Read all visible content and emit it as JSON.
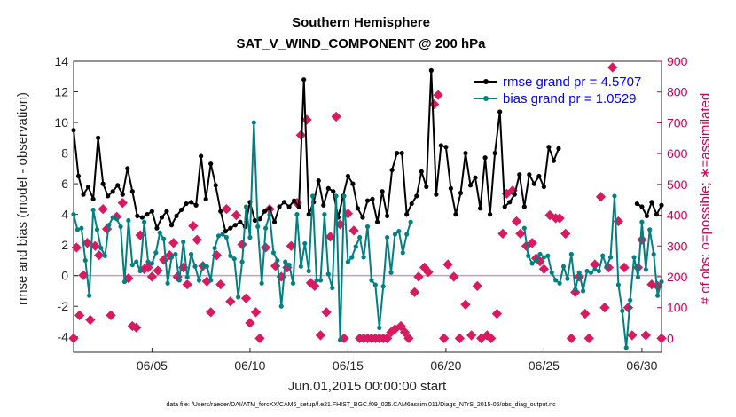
{
  "chart_data": {
    "type": "line",
    "title": "Southern Hemisphere",
    "subtitle": "SAT_V_WIND_COMPONENT @ 200 hPa",
    "xlabel": "Jun.01,2015 00:00:00 start",
    "ylabel": "rmse and bias (model - observation)",
    "ylabel_right": "# of obs: o=possible; ∗=assimilated",
    "footnote": "data file: /Users/raeder/DAI/ATM_forcXX/CAM6_setup/f.e21.FHIST_BGC.f09_025.CAM6assim.011/Diags_NTrS_2015-06/obs_diag_output.nc",
    "x_range": [
      1.0,
      31.0
    ],
    "ylim": [
      -5,
      14
    ],
    "ylim_right": [
      -45,
      900
    ],
    "y_ticks": [
      "14",
      "12",
      "10",
      "8",
      "6",
      "4",
      "2",
      "0",
      "-2",
      "-4"
    ],
    "y_right_ticks": [
      "900",
      "800",
      "700",
      "600",
      "500",
      "400",
      "300",
      "200",
      "100",
      "0"
    ],
    "x_ticks": [
      {
        "label": "06/05",
        "day": 5
      },
      {
        "label": "06/10",
        "day": 10
      },
      {
        "label": "06/15",
        "day": 15
      },
      {
        "label": "06/20",
        "day": 20
      },
      {
        "label": "06/25",
        "day": 25
      },
      {
        "label": "06/30",
        "day": 30
      }
    ],
    "legend": [
      {
        "label": "rmse grand pr = 4.5707",
        "color": "#000000"
      },
      {
        "label": "bias grand pr = 1.0529",
        "color": "#008080"
      }
    ],
    "series": [
      {
        "name": "rmse",
        "color": "#000000",
        "values": [
          9.5,
          6.5,
          5.3,
          5.8,
          5.0,
          9.0,
          6.0,
          5.2,
          5.5,
          5.9,
          5.3,
          7.0,
          5.5,
          3.9,
          3.8,
          4.0,
          4.2,
          3.1,
          3.8,
          4.2,
          3.3,
          3.9,
          4.3,
          4.7,
          4.8,
          4.6,
          7.8,
          5.0,
          7.3,
          5.9,
          4.2,
          2.9,
          3.1,
          3.3,
          3.5,
          3.2,
          4.8,
          3.6,
          3.7,
          4.2,
          4.4,
          3.5,
          4.5,
          4.8,
          4.5,
          4.9,
          4.5,
          12.8,
          4.0,
          4.8,
          6.2,
          4.6,
          5.7,
          5.5,
          3.8,
          5.2,
          6.5,
          6.0,
          4.4,
          3.8,
          4.9,
          5.0,
          3.5,
          5.5,
          3.9,
          6.9,
          8.0,
          8.0,
          4.0,
          4.7,
          5.2,
          6.8,
          5.8,
          13.4,
          5.3,
          8.5,
          8.4,
          5.7,
          4.0,
          5.4,
          8.0,
          5.9,
          6.4,
          4.4,
          7.7,
          4.0,
          8.0,
          10.7,
          4.5,
          4.8,
          5.3,
          6.6,
          4.5,
          6.6,
          6.0,
          6.5,
          5.8,
          8.4,
          7.5,
          8.3,
          null,
          null,
          null,
          null,
          null,
          null,
          null,
          null,
          null,
          null,
          null,
          null,
          null,
          null,
          null,
          4.7,
          4.5,
          3.9,
          4.8,
          4.0,
          4.6,
          5.1,
          3.6,
          4.5,
          4.0,
          4.2,
          3.7,
          6.7,
          5.0,
          4.2,
          3.8,
          4.3,
          4.6,
          3.6,
          3.4,
          3.9,
          3.2,
          3.8,
          9.1,
          3.5,
          4.5,
          3.0,
          4.0,
          3.6,
          5.3,
          6.7,
          3.4,
          3.9,
          4.6,
          5.6,
          3.3,
          4.4,
          4.2,
          6.6,
          4.0,
          4.7,
          4.1,
          4.3,
          4.7,
          4.2,
          5.4,
          4.8,
          4.4,
          4.2,
          4.5,
          3.4
        ],
        "labels_x_start": 1.0,
        "step_days": 0.25
      },
      {
        "name": "bias",
        "color": "#008080",
        "values": [
          4.0,
          3.0,
          3.1,
          1.0,
          -1.3,
          4.3,
          3.0,
          1.8,
          1.3,
          3.3,
          3.8,
          3.7,
          3.2,
          -0.4,
          3.6,
          0.7,
          0.9,
          0.3,
          3.5,
          0.9,
          0.8,
          1.5,
          2.8,
          2.4,
          -0.5,
          1.2,
          1.4,
          -0.3,
          2.2,
          -0.1,
          1.4,
          0.6,
          -0.3,
          0.7,
          0.6,
          -0.3,
          1.8,
          2.6,
          2.7,
          2.5,
          1.3,
          1.1,
          -1.4,
          0.9,
          4.5,
          2.5,
          10.0,
          3.2,
          -0.5,
          3.1,
          4.0,
          1.5,
          1.0,
          -2.0,
          0.9,
          0.7,
          -0.5,
          4.0,
          0.6,
          2.1,
          0.3,
          5.2,
          -0.3,
          -0.3,
          4.0,
          0.1,
          -0.8,
          5.2,
          -4.2,
          5.2,
          0.9,
          1.2,
          1.9,
          2.5,
          1.2,
          3.2,
          -0.3,
          -0.6,
          -3.4,
          -0.7,
          2.5,
          0.2,
          2.7,
          2.9,
          1.5,
          2.7,
          3.5,
          null,
          null,
          null,
          null,
          null,
          null,
          null,
          null,
          null,
          null,
          null,
          null,
          null,
          null,
          null,
          null,
          null,
          null,
          null,
          null,
          null,
          null,
          null,
          null,
          null,
          null,
          null,
          null,
          3.1,
          1.3,
          0.8,
          1.0,
          1.4,
          1.2,
          1.3,
          0.2,
          -0.3,
          -0.5,
          0.6,
          -0.2,
          1.4,
          -0.9,
          0.2,
          -1.0,
          0.3,
          0.2,
          0.4,
          0.3,
          1.3,
          0.6,
          1.2,
          5.2,
          -0.6,
          -2.3,
          -4.7,
          -1.6,
          1.2,
          -0.1,
          3.5,
          0.4,
          3.0,
          1.4,
          -1.3,
          -0.4,
          0.5,
          1.5,
          0.1,
          1.2,
          -0.5,
          0.9,
          -0.3,
          -1.0,
          1.0,
          0.5,
          -0.8,
          -0.5,
          -0.6,
          -0.9,
          -0.2
        ],
        "labels_x_start": 1.0,
        "step_days": 0.2
      }
    ],
    "obs_possible_markers": [
      {
        "day": 1.0,
        "count": 0
      },
      {
        "day": 1.15,
        "count": 295
      },
      {
        "day": 1.3,
        "count": 75
      },
      {
        "day": 1.5,
        "count": 205
      },
      {
        "day": 1.7,
        "count": 310
      },
      {
        "day": 1.85,
        "count": 60
      },
      {
        "day": 2.1,
        "count": 300
      },
      {
        "day": 2.3,
        "count": 270
      },
      {
        "day": 2.5,
        "count": 420
      },
      {
        "day": 2.7,
        "count": 355
      },
      {
        "day": 2.9,
        "count": 75
      },
      {
        "day": 3.2,
        "count": 395
      },
      {
        "day": 3.5,
        "count": 440
      },
      {
        "day": 3.8,
        "count": 195
      },
      {
        "day": 4.0,
        "count": 40
      },
      {
        "day": 4.2,
        "count": 35
      },
      {
        "day": 4.4,
        "count": 335
      },
      {
        "day": 4.6,
        "count": 225
      },
      {
        "day": 4.8,
        "count": 230
      },
      {
        "day": 5.0,
        "count": 200
      },
      {
        "day": 5.3,
        "count": 220
      },
      {
        "day": 5.6,
        "count": 255
      },
      {
        "day": 5.9,
        "count": 270
      },
      {
        "day": 6.1,
        "count": 310
      },
      {
        "day": 6.3,
        "count": 200
      },
      {
        "day": 6.6,
        "count": 230
      },
      {
        "day": 6.8,
        "count": 175
      },
      {
        "day": 7.1,
        "count": 365
      },
      {
        "day": 7.3,
        "count": 320
      },
      {
        "day": 7.6,
        "count": 235
      },
      {
        "day": 7.8,
        "count": 185
      },
      {
        "day": 8.0,
        "count": 85
      },
      {
        "day": 8.3,
        "count": 270
      },
      {
        "day": 8.5,
        "count": 175
      },
      {
        "day": 8.8,
        "count": 420
      },
      {
        "day": 9.0,
        "count": 120
      },
      {
        "day": 9.3,
        "count": 400
      },
      {
        "day": 9.6,
        "count": 305
      },
      {
        "day": 9.8,
        "count": 130
      },
      {
        "day": 10.0,
        "count": 50
      },
      {
        "day": 10.3,
        "count": 85
      },
      {
        "day": 10.5,
        "count": 0
      },
      {
        "day": 10.8,
        "count": 295
      },
      {
        "day": 11.0,
        "count": 420
      },
      {
        "day": 11.3,
        "count": 235
      },
      {
        "day": 11.6,
        "count": 200
      },
      {
        "day": 11.9,
        "count": 230
      },
      {
        "day": 12.1,
        "count": 300
      },
      {
        "day": 12.4,
        "count": 440
      },
      {
        "day": 12.6,
        "count": 660
      },
      {
        "day": 12.9,
        "count": 710
      },
      {
        "day": 13.1,
        "count": 180
      },
      {
        "day": 13.3,
        "count": 170
      },
      {
        "day": 13.6,
        "count": 10
      },
      {
        "day": 13.9,
        "count": 85
      },
      {
        "day": 14.1,
        "count": 330
      },
      {
        "day": 14.4,
        "count": 720
      },
      {
        "day": 14.6,
        "count": 370
      },
      {
        "day": 14.8,
        "count": 0
      },
      {
        "day": 15.0,
        "count": 405
      },
      {
        "day": 15.3,
        "count": 350
      },
      {
        "day": 15.6,
        "count": 0
      },
      {
        "day": 15.8,
        "count": 0
      },
      {
        "day": 16.0,
        "count": 0
      },
      {
        "day": 16.2,
        "count": 0
      },
      {
        "day": 16.4,
        "count": 0
      },
      {
        "day": 16.6,
        "count": 0
      },
      {
        "day": 16.8,
        "count": 0
      },
      {
        "day": 17.0,
        "count": 0
      },
      {
        "day": 17.2,
        "count": 20
      },
      {
        "day": 17.4,
        "count": 30
      },
      {
        "day": 17.7,
        "count": 40
      },
      {
        "day": 17.9,
        "count": 20
      },
      {
        "day": 18.1,
        "count": 0
      },
      {
        "day": 18.4,
        "count": 150
      },
      {
        "day": 18.6,
        "count": 200
      },
      {
        "day": 18.9,
        "count": 230
      },
      {
        "day": 19.1,
        "count": 215
      },
      {
        "day": 19.4,
        "count": 760
      },
      {
        "day": 19.6,
        "count": 790
      },
      {
        "day": 19.9,
        "count": 0
      },
      {
        "day": 20.1,
        "count": 240
      },
      {
        "day": 20.4,
        "count": 200
      },
      {
        "day": 20.7,
        "count": 0
      },
      {
        "day": 21.0,
        "count": 110
      },
      {
        "day": 21.3,
        "count": 10
      },
      {
        "day": 21.6,
        "count": 170
      },
      {
        "day": 21.8,
        "count": 0
      },
      {
        "day": 22.1,
        "count": 10
      },
      {
        "day": 22.3,
        "count": 0
      },
      {
        "day": 22.6,
        "count": 80
      },
      {
        "day": 22.9,
        "count": 340
      },
      {
        "day": 23.1,
        "count": 470
      },
      {
        "day": 23.4,
        "count": 480
      },
      {
        "day": 23.6,
        "count": 380
      },
      {
        "day": 23.8,
        "count": 340
      },
      {
        "day": 24.1,
        "count": 300
      },
      {
        "day": 24.4,
        "count": 310
      },
      {
        "day": 24.6,
        "count": 260
      },
      {
        "day": 24.8,
        "count": 250
      },
      {
        "day": 25.0,
        "count": 225
      },
      {
        "day": 25.3,
        "count": 400
      },
      {
        "day": 25.6,
        "count": 390
      },
      {
        "day": 25.8,
        "count": 390
      },
      {
        "day": 26.1,
        "count": 340
      },
      {
        "day": 26.4,
        "count": 0
      },
      {
        "day": 26.6,
        "count": 150
      },
      {
        "day": 26.8,
        "count": 200
      },
      {
        "day": 27.1,
        "count": 80
      },
      {
        "day": 27.3,
        "count": 0
      },
      {
        "day": 27.6,
        "count": 240
      },
      {
        "day": 27.9,
        "count": 460
      },
      {
        "day": 28.1,
        "count": 100
      },
      {
        "day": 28.3,
        "count": 230
      },
      {
        "day": 28.5,
        "count": 880
      },
      {
        "day": 28.8,
        "count": 380
      },
      {
        "day": 29.1,
        "count": 230
      },
      {
        "day": 29.3,
        "count": 100
      },
      {
        "day": 29.5,
        "count": 10
      },
      {
        "day": 29.8,
        "count": 230
      },
      {
        "day": 30.0,
        "count": 320
      },
      {
        "day": 30.2,
        "count": 10
      },
      {
        "day": 30.5,
        "count": 175
      },
      {
        "day": 30.8,
        "count": 170
      },
      {
        "day": 31.0,
        "count": 0
      }
    ],
    "zero_line_color": "#c0a0c0",
    "obs_marker_color": "#d81b60"
  }
}
